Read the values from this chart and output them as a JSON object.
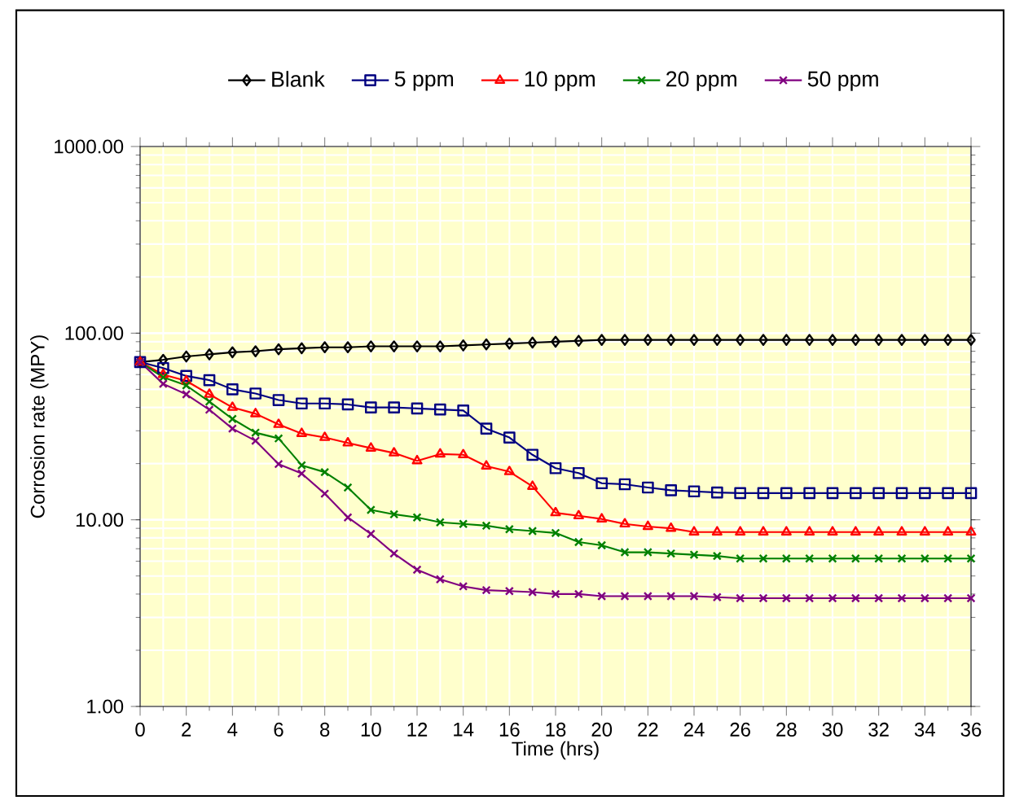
{
  "chart_data": {
    "type": "line",
    "xlabel": "Time (hrs)",
    "ylabel": "Corrosion rate (MPY)",
    "log": "y",
    "grid": true,
    "legend": "top",
    "line_style": "solid",
    "x": [
      0,
      1,
      2,
      3,
      4,
      5,
      6,
      7,
      8,
      9,
      10,
      11,
      12,
      13,
      14,
      15,
      16,
      17,
      18,
      19,
      20,
      21,
      22,
      23,
      24,
      25,
      26,
      27,
      28,
      29,
      30,
      31,
      32,
      33,
      34,
      35,
      36
    ],
    "xlim": [
      0,
      36
    ],
    "xticks": [
      0,
      2,
      4,
      6,
      8,
      10,
      12,
      14,
      16,
      18,
      20,
      22,
      24,
      26,
      28,
      30,
      32,
      34,
      36
    ],
    "ylim": [
      1,
      1000
    ],
    "yticks": [
      {
        "value": 1,
        "label": "1.00"
      },
      {
        "value": 10,
        "label": "10.00"
      },
      {
        "value": 100,
        "label": "100.00"
      },
      {
        "value": 1000,
        "label": "1000.00"
      }
    ],
    "series": [
      {
        "name": "Blank",
        "color": "#000000",
        "marker": "diamond",
        "values": [
          70,
          72,
          75,
          77,
          79,
          80,
          82,
          83,
          84,
          84,
          85,
          85,
          85,
          85,
          86,
          87,
          88,
          89,
          90,
          91,
          92,
          92,
          92,
          92,
          92,
          92,
          92,
          92,
          92,
          92,
          92,
          92,
          92,
          92,
          92,
          92,
          92
        ]
      },
      {
        "name": "5 ppm",
        "color": "#000080",
        "marker": "square",
        "values": [
          70,
          65,
          59,
          56,
          50,
          47.5,
          43.8,
          42,
          42,
          41.5,
          40,
          40,
          39.5,
          39,
          38.5,
          30.8,
          27.6,
          22.3,
          18.9,
          17.8,
          15.7,
          15.5,
          14.9,
          14.4,
          14.2,
          14,
          13.9,
          13.9,
          13.9,
          13.9,
          13.9,
          13.9,
          13.9,
          13.9,
          13.9,
          13.9,
          13.9
        ]
      },
      {
        "name": "10 ppm",
        "color": "#ff0000",
        "marker": "triangle",
        "values": [
          70,
          60,
          55.5,
          47,
          40,
          37,
          32.4,
          29,
          27.6,
          25.8,
          24.2,
          22.8,
          20.7,
          22.5,
          22.3,
          19.4,
          18.1,
          15.1,
          10.9,
          10.5,
          10.1,
          9.5,
          9.2,
          9,
          8.6,
          8.6,
          8.6,
          8.6,
          8.6,
          8.6,
          8.6,
          8.6,
          8.6,
          8.6,
          8.6,
          8.6,
          8.6
        ]
      },
      {
        "name": "20 ppm",
        "color": "#008000",
        "marker": "cross",
        "values": [
          70,
          58,
          52.5,
          43,
          34.7,
          29.3,
          27.3,
          19.6,
          18,
          14.9,
          11.3,
          10.7,
          10.3,
          9.7,
          9.5,
          9.3,
          8.9,
          8.7,
          8.5,
          7.6,
          7.3,
          6.7,
          6.7,
          6.6,
          6.5,
          6.4,
          6.2,
          6.2,
          6.2,
          6.2,
          6.2,
          6.2,
          6.2,
          6.2,
          6.2,
          6.2,
          6.2
        ]
      },
      {
        "name": "50 ppm",
        "color": "#800080",
        "marker": "cross",
        "values": [
          70,
          53.5,
          47,
          38.9,
          30.8,
          26.5,
          19.9,
          17.7,
          13.8,
          10.3,
          8.4,
          6.6,
          5.4,
          4.8,
          4.4,
          4.2,
          4.15,
          4.1,
          4,
          4,
          3.9,
          3.9,
          3.9,
          3.9,
          3.9,
          3.85,
          3.8,
          3.8,
          3.8,
          3.8,
          3.8,
          3.8,
          3.8,
          3.8,
          3.8,
          3.8,
          3.8
        ]
      }
    ]
  }
}
